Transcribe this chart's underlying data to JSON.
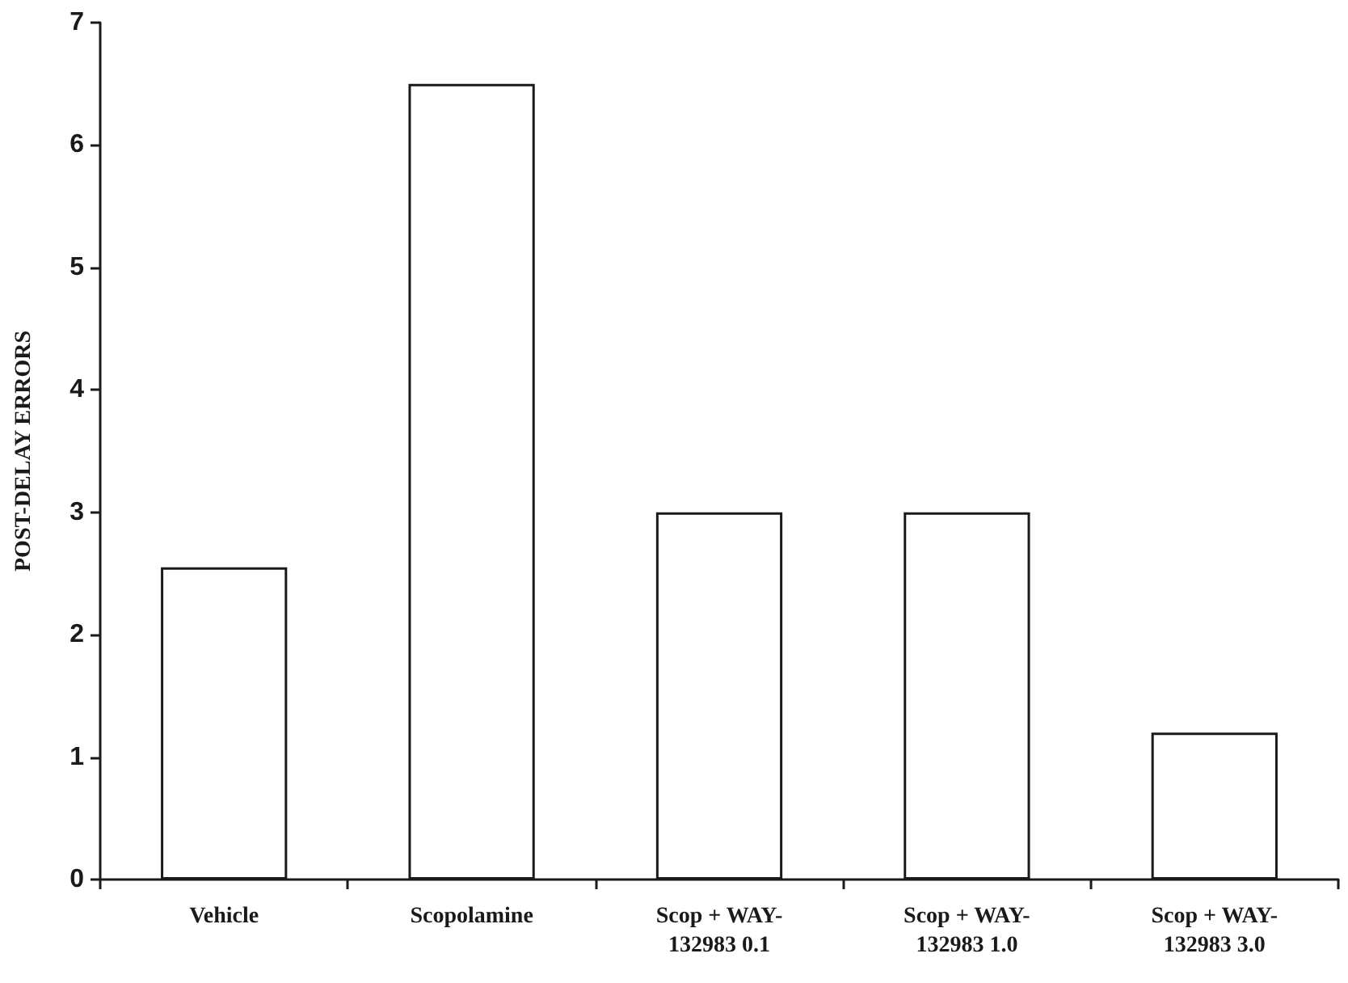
{
  "chart_data": {
    "type": "bar",
    "ylabel": "POST-DELAY ERRORS",
    "categories": [
      "Vehicle",
      "Scopolamine",
      "Scop + WAY-\n132983 0.1",
      "Scop + WAY-\n132983 1.0",
      "Scop + WAY-\n132983 3.0"
    ],
    "values": [
      2.55,
      6.5,
      3.0,
      3.0,
      1.2
    ],
    "color": "#ffffff",
    "ylim": [
      0,
      7
    ],
    "yticks": [
      0,
      1,
      2,
      3,
      4,
      5,
      6,
      7
    ]
  }
}
